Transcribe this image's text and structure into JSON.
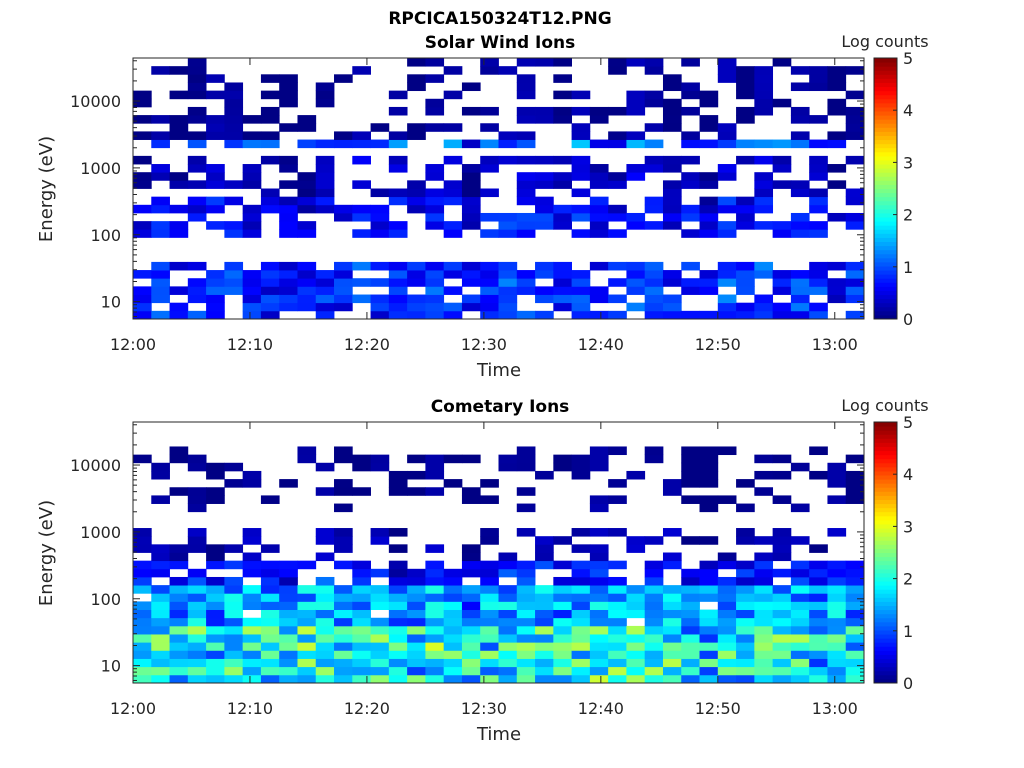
{
  "figure": {
    "title": "RPCICA150324T12.PNG"
  },
  "chart_data": [
    {
      "type": "heatmap",
      "title": "Solar Wind Ions",
      "xlabel": "Time",
      "ylabel": "Energy (eV)",
      "x_ticks": [
        "12:00",
        "12:10",
        "12:20",
        "12:30",
        "12:40",
        "12:50",
        "13:00"
      ],
      "x_tick_minutes": [
        0,
        10,
        20,
        30,
        40,
        50,
        60
      ],
      "xlim_minutes": [
        0,
        62.5
      ],
      "yscale": "log",
      "ylim": [
        5.5,
        44000
      ],
      "y_ticks": [
        "10",
        "100",
        "1000",
        "10000"
      ],
      "y_tick_values": [
        10,
        100,
        1000,
        10000
      ],
      "colorbar": {
        "label": "Log counts",
        "ticks": [
          "0",
          "1",
          "2",
          "3",
          "4",
          "5"
        ],
        "range": [
          0,
          5
        ],
        "colormap": "jet"
      },
      "time_bins": 40,
      "energy_bins": 32,
      "profile": {
        "bands": [
          {
            "energy_range": [
              6,
              40
            ],
            "typical_log_counts": 0.8,
            "peak_log_counts": 2.3
          },
          {
            "energy_range": [
              80,
              400
            ],
            "typical_log_counts": 0.6,
            "peak_log_counts": 1.2
          },
          {
            "energy_range": [
              400,
              1500
            ],
            "typical_log_counts": 0.3,
            "peak_log_counts": 0.9
          },
          {
            "energy_range": [
              1800,
              2600
            ],
            "typical_log_counts": 1.0,
            "peak_log_counts": 1.6
          },
          {
            "energy_range": [
              3000,
              44000
            ],
            "typical_log_counts": 0.1,
            "peak_log_counts": 0.3
          }
        ]
      }
    },
    {
      "type": "heatmap",
      "title": "Cometary Ions",
      "xlabel": "Time",
      "ylabel": "Energy (eV)",
      "x_ticks": [
        "12:00",
        "12:10",
        "12:20",
        "12:30",
        "12:40",
        "12:50",
        "13:00"
      ],
      "x_tick_minutes": [
        0,
        10,
        20,
        30,
        40,
        50,
        60
      ],
      "xlim_minutes": [
        0,
        62.5
      ],
      "yscale": "log",
      "ylim": [
        5.5,
        44000
      ],
      "y_ticks": [
        "10",
        "100",
        "1000",
        "10000"
      ],
      "y_tick_values": [
        10,
        100,
        1000,
        10000
      ],
      "colorbar": {
        "label": "Log counts",
        "ticks": [
          "0",
          "1",
          "2",
          "3",
          "4",
          "5"
        ],
        "range": [
          0,
          5
        ],
        "colormap": "jet"
      },
      "time_bins": 40,
      "energy_bins": 32,
      "profile": {
        "bands": [
          {
            "energy_range": [
              6,
              40
            ],
            "typical_log_counts": 1.9,
            "peak_log_counts": 3.1
          },
          {
            "energy_range": [
              40,
              150
            ],
            "typical_log_counts": 1.4,
            "peak_log_counts": 2.0
          },
          {
            "energy_range": [
              150,
              400
            ],
            "typical_log_counts": 0.7,
            "peak_log_counts": 1.2
          },
          {
            "energy_range": [
              400,
              1000
            ],
            "typical_log_counts": 0.2,
            "peak_log_counts": 0.4
          },
          {
            "energy_range": [
              1800,
              2600
            ],
            "typical_log_counts": 0.1,
            "peak_log_counts": 0.3
          },
          {
            "energy_range": [
              3000,
              20000
            ],
            "typical_log_counts": 0.05,
            "peak_log_counts": 0.2
          }
        ]
      }
    }
  ]
}
